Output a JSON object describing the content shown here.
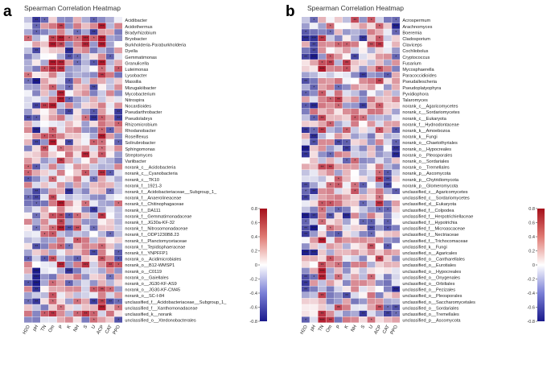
{
  "colors": {
    "negative": "#1a1a8c",
    "neutral": "#ffffff",
    "positive": "#b2182b",
    "grid": "#ffffff",
    "star": "#222222"
  },
  "chart_data": [
    {
      "type": "heatmap",
      "panel_label": "a",
      "title": "Spearman Correlation Heatmap",
      "x": [
        "H2O",
        "pH",
        "TN",
        "Om",
        "P",
        "K",
        "NH",
        "S",
        "U",
        "ACP",
        "CAT",
        "PPO"
      ],
      "rows": [
        "Acidibacter",
        "Acidothermus",
        "Bradyrhizobium",
        "Bryobacter",
        "Burkholderia-Paraburkholderia",
        "Dyella",
        "Gemmatimonas",
        "Granulicella",
        "Luteimonas",
        "Lysobacter",
        "Massilia",
        "Mizugakiibacter",
        "Mycobacterium",
        "Nitrospira",
        "Nocardioides",
        "Pseudarthrobacter",
        "Pseudolabrys",
        "Rhizomicrobium",
        "Rhodanobacter",
        "Roseiflexus",
        "Solirubrobacter",
        "Sphingomonas",
        "Streptomyces",
        "Variibacter",
        "norank_c__Acidobacteria",
        "norank_c__Cyanobacteria",
        "norank_c__TK10",
        "norank_f__1921-3",
        "norank_f__Acidobacteriaceae__Subgroup_1_",
        "norank_f__Anaerolineaceae",
        "norank_f__Chitinophagaceae",
        "norank_f__DA111",
        "norank_f__Gemmatimonadaceae",
        "norank_f__JG30a-KF-32",
        "norank_f__Nitrosomonadaceae",
        "norank_f__ODP1230B8.23",
        "norank_f__Planctomycetaceae",
        "norank_f__Tepidisphaeraceae",
        "norank_f__YNPFFP1",
        "norank_o__Acidimicrobiales",
        "norank_o__B12-WMSP1",
        "norank_o__C0119",
        "norank_o__Gaiellales",
        "norank_o__JG30-KF-AS9",
        "norank_o__JG30-KF-CM45",
        "norank_o__SC-I-84",
        "unclassified_f__Acidobacteriaceae__Subgroup_1_",
        "unclassified_f__Xanthomonadaceae",
        "unclassified_k__norank",
        "unclassified_o__Xtedonobacterales"
      ],
      "value_range": [
        -0.8,
        0.8
      ],
      "colorbar_ticks": [
        0.8,
        0.6,
        0.4,
        0.2,
        0,
        -0.2,
        -0.4,
        -0.6,
        -0.8
      ],
      "seed": 1,
      "values_note": "cell correlations estimated from colour (range -0.8 to 0.8); generated deterministically in script"
    },
    {
      "type": "heatmap",
      "panel_label": "b",
      "title": "Spearman Correlation Heatmap",
      "x": [
        "H2O",
        "pH",
        "TN",
        "Om",
        "P",
        "K",
        "NH",
        "S",
        "U",
        "ACP",
        "CAT",
        "PPO"
      ],
      "rows": [
        "Acrospermum",
        "Arachnomyces",
        "Boeremia",
        "Cladosporium",
        "Claviceps",
        "Cochliobolus",
        "Cryptococcus",
        "Fusarium",
        "Mycosphaerella",
        "Paracoccidioides",
        "Pseudallescheria",
        "Pseudoplatyophyra",
        "Pyxidiophora",
        "Talaromyces",
        "norank_c__Agaricomycetes",
        "norank_c__Sordariomycetes",
        "norank_c__Eukaryota",
        "norank_f__Hydnodontaceae",
        "norank_k__Amoebozoa",
        "norank_k__Fungi",
        "norank_o__Chaetothyriales",
        "norank_o__Hypocreales",
        "norank_o__Pleosporales",
        "norank_o__Sordariales",
        "norank_o__Tremellales",
        "norank_p__Ascomycota",
        "norank_p__Chytridiomycota",
        "norank_p__Glomeromycota",
        "unclassified_c__Agaricomycetes",
        "unclassified_c__Sordariomycetes",
        "unclassified_d__Eukaryota",
        "unclassified_f__Colpodea",
        "unclassified_f__Herpotrichiellaceae",
        "unclassified_f__Hypotrichia",
        "unclassified_f__Microascaceae",
        "unclassified_f__Nectriaceae",
        "unclassified_f__Trichocomaceae",
        "unclassified_k__Fungi",
        "unclassified_o__Agaricales",
        "unclassified_o__Cantharellales",
        "unclassified_o__Eurotiales",
        "unclassified_o__Hypocreales",
        "unclassified_o__Onygenales",
        "unclassified_o__Orbiliales",
        "unclassified_o__Pezizales",
        "unclassified_o__Pleosporales",
        "unclassified_o__Saccharomycetales",
        "unclassified_o__Sordariales",
        "unclassified_o__Tremellales",
        "unclassified_p__Ascomycota"
      ],
      "value_range": [
        -0.8,
        0.8
      ],
      "colorbar_ticks": [
        0.8,
        0.6,
        0.4,
        0.2,
        0,
        -0.2,
        -0.4,
        -0.6,
        -0.8
      ],
      "seed": 7,
      "values_note": "cell correlations estimated from colour (range -0.8 to 0.8); generated deterministically in script"
    }
  ]
}
